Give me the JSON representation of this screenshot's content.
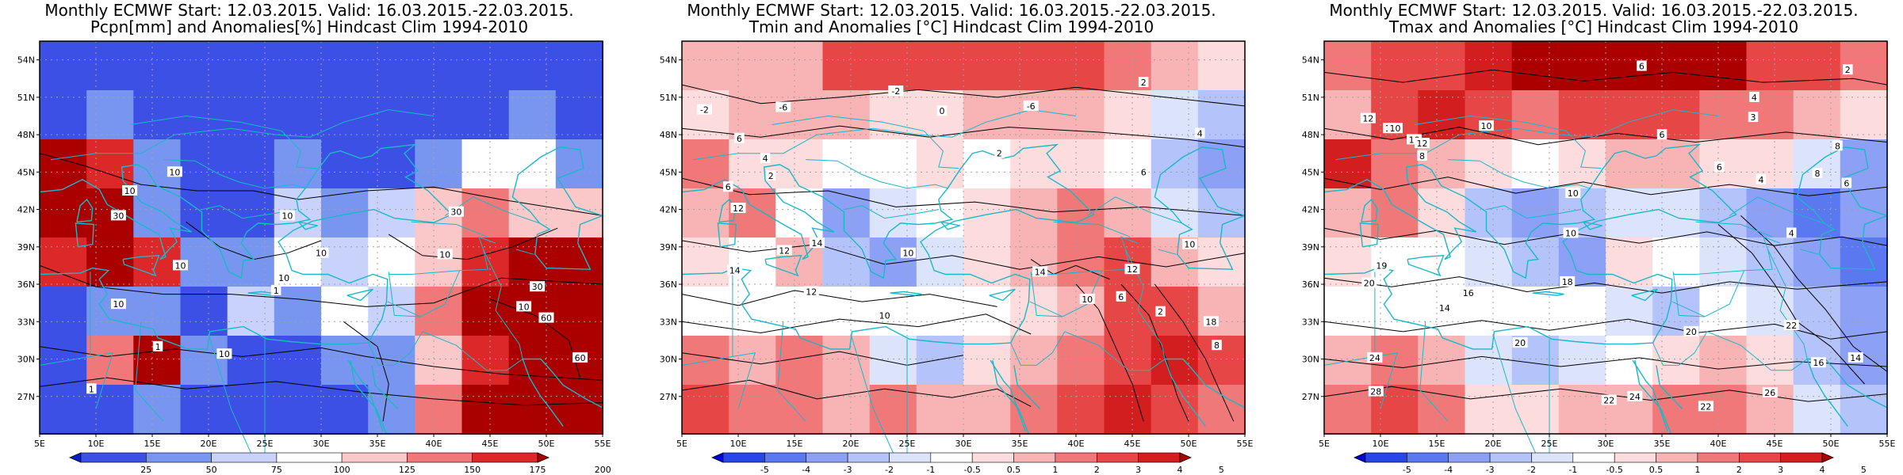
{
  "panels": [
    {
      "title_line1": "Monthly ECMWF Start: 12.03.2015. Valid: 16.03.2015.-22.03.2015.",
      "title_line2": "Pcpn[mm] and Anomalies[%] Hindcast Clim 1994-2010",
      "colorbar_labels": [
        "25",
        "50",
        "75",
        "100",
        "125",
        "150",
        "175",
        "200"
      ],
      "colorbar_colors": [
        "#0a1ec8",
        "#3c50e6",
        "#7896f0",
        "#c8d2fa",
        "#ffffff",
        "#fac8c8",
        "#f07878",
        "#dc2828",
        "#aa0000"
      ],
      "contour_labels": [
        "10",
        "10",
        "30",
        "10",
        "10",
        "10",
        "10",
        "10",
        "30",
        "10",
        "30",
        "60",
        "10",
        "60",
        "1",
        "10",
        "1",
        "1"
      ],
      "field": [
        [
          "#3c50e6",
          "#3c50e6",
          "#3c50e6",
          "#3c50e6",
          "#3c50e6",
          "#3c50e6",
          "#3c50e6",
          "#3c50e6",
          "#3c50e6",
          "#3c50e6",
          "#3c50e6",
          "#3c50e6"
        ],
        [
          "#3c50e6",
          "#7896f0",
          "#3c50e6",
          "#3c50e6",
          "#3c50e6",
          "#3c50e6",
          "#3c50e6",
          "#3c50e6",
          "#3c50e6",
          "#3c50e6",
          "#7896f0",
          "#3c50e6"
        ],
        [
          "#aa0000",
          "#dc2828",
          "#7896f0",
          "#3c50e6",
          "#3c50e6",
          "#7896f0",
          "#3c50e6",
          "#3c50e6",
          "#7896f0",
          "#ffffff",
          "#ffffff",
          "#7896f0"
        ],
        [
          "#aa0000",
          "#aa0000",
          "#7896f0",
          "#3c50e6",
          "#3c50e6",
          "#c8d2fa",
          "#7896f0",
          "#c8d2fa",
          "#fac8c8",
          "#f07878",
          "#fac8c8",
          "#fac8c8"
        ],
        [
          "#dc2828",
          "#aa0000",
          "#dc2828",
          "#7896f0",
          "#7896f0",
          "#ffffff",
          "#c8d2fa",
          "#ffffff",
          "#fac8c8",
          "#dc2828",
          "#aa0000",
          "#aa0000"
        ],
        [
          "#3c50e6",
          "#7896f0",
          "#7896f0",
          "#3c50e6",
          "#c8d2fa",
          "#7896f0",
          "#ffffff",
          "#c8d2fa",
          "#f07878",
          "#aa0000",
          "#aa0000",
          "#aa0000"
        ],
        [
          "#3c50e6",
          "#f07878",
          "#aa0000",
          "#7896f0",
          "#3c50e6",
          "#3c50e6",
          "#7896f0",
          "#7896f0",
          "#fac8c8",
          "#dc2828",
          "#aa0000",
          "#aa0000"
        ],
        [
          "#3c50e6",
          "#3c50e6",
          "#7896f0",
          "#3c50e6",
          "#3c50e6",
          "#3c50e6",
          "#3c50e6",
          "#7896f0",
          "#f07878",
          "#aa0000",
          "#aa0000",
          "#aa0000"
        ]
      ]
    },
    {
      "title_line1": "Monthly ECMWF Start: 12.03.2015. Valid: 16.03.2015.-22.03.2015.",
      "title_line2": "Tmin and Anomalies [°C] Hindcast Clim 1994-2010",
      "colorbar_labels": [
        "-5",
        "-4",
        "-3",
        "-2",
        "-1",
        "-0.5",
        "0.5",
        "1",
        "2",
        "3",
        "4",
        "5"
      ],
      "colorbar_colors": [
        "#0000dc",
        "#2846e6",
        "#5a78f0",
        "#8ca0f5",
        "#b4c3fa",
        "#dce4fc",
        "#ffffff",
        "#fcdcdc",
        "#f8b4b4",
        "#f07878",
        "#e64646",
        "#d21e1e",
        "#aa0000"
      ],
      "contour_labels": [
        "-2",
        "-6",
        "-2",
        "-6",
        "2",
        "4",
        "6",
        "4",
        "2",
        "6",
        "0",
        "2",
        "6",
        "12",
        "14",
        "12",
        "10",
        "14",
        "12",
        "10",
        "14",
        "18",
        "6",
        "2",
        "8",
        "10",
        "12",
        "10"
      ],
      "field": [
        [
          "#f8b4b4",
          "#f8b4b4",
          "#f8b4b4",
          "#e64646",
          "#e64646",
          "#e64646",
          "#e64646",
          "#e64646",
          "#e64646",
          "#f07878",
          "#f8b4b4",
          "#fcdcdc"
        ],
        [
          "#fcdcdc",
          "#f8b4b4",
          "#f8b4b4",
          "#f8b4b4",
          "#fcdcdc",
          "#fcdcdc",
          "#f8b4b4",
          "#f8b4b4",
          "#f8b4b4",
          "#fcdcdc",
          "#dce4fc",
          "#b4c3fa"
        ],
        [
          "#f07878",
          "#fcdcdc",
          "#fcdcdc",
          "#ffffff",
          "#ffffff",
          "#fcdcdc",
          "#ffffff",
          "#fcdcdc",
          "#fcdcdc",
          "#ffffff",
          "#b4c3fa",
          "#8ca0f5"
        ],
        [
          "#f8b4b4",
          "#f07878",
          "#ffffff",
          "#8ca0f5",
          "#dce4fc",
          "#ffffff",
          "#fcdcdc",
          "#f8b4b4",
          "#f07878",
          "#f8b4b4",
          "#dce4fc",
          "#b4c3fa"
        ],
        [
          "#fcdcdc",
          "#ffffff",
          "#f8b4b4",
          "#b4c3fa",
          "#8ca0f5",
          "#dce4fc",
          "#fcdcdc",
          "#f8b4b4",
          "#f07878",
          "#e64646",
          "#f8b4b4",
          "#fcdcdc"
        ],
        [
          "#ffffff",
          "#ffffff",
          "#ffffff",
          "#ffffff",
          "#ffffff",
          "#ffffff",
          "#ffffff",
          "#fcdcdc",
          "#f8b4b4",
          "#e64646",
          "#e64646",
          "#f8b4b4"
        ],
        [
          "#f07878",
          "#f8b4b4",
          "#f07878",
          "#f8b4b4",
          "#dce4fc",
          "#b4c3fa",
          "#fcdcdc",
          "#f8b4b4",
          "#f07878",
          "#e64646",
          "#d21e1e",
          "#e64646"
        ],
        [
          "#e64646",
          "#f07878",
          "#f07878",
          "#f8b4b4",
          "#f07878",
          "#f8b4b4",
          "#f8b4b4",
          "#f07878",
          "#e64646",
          "#d21e1e",
          "#e64646",
          "#f07878"
        ]
      ]
    },
    {
      "title_line1": "Monthly ECMWF Start: 12.03.2015. Valid: 16.03.2015.-22.03.2015.",
      "title_line2": "Tmax and Anomalies [°C] Hindcast Clim 1994-2010",
      "colorbar_labels": [
        "-5",
        "-4",
        "-3",
        "-2",
        "-1",
        "-0.5",
        "0.5",
        "1",
        "2",
        "3",
        "4",
        "5"
      ],
      "colorbar_colors": [
        "#0000dc",
        "#2846e6",
        "#5a78f0",
        "#8ca0f5",
        "#b4c3fa",
        "#dce4fc",
        "#ffffff",
        "#fcdcdc",
        "#f8b4b4",
        "#f07878",
        "#e64646",
        "#d21e1e",
        "#aa0000"
      ],
      "contour_labels": [
        "6",
        "2",
        "12",
        "10",
        "10",
        "8",
        "6",
        "3",
        "4",
        "12",
        "10",
        "12",
        "8",
        "4",
        "6",
        "10",
        "8",
        "6",
        "4",
        "10",
        "19",
        "20",
        "16",
        "14",
        "20",
        "22",
        "20",
        "24",
        "28",
        "24",
        "22",
        "26",
        "22",
        "16",
        "14",
        "18"
      ],
      "field": [
        [
          "#f07878",
          "#e64646",
          "#e64646",
          "#d21e1e",
          "#aa0000",
          "#aa0000",
          "#aa0000",
          "#aa0000",
          "#aa0000",
          "#e64646",
          "#e64646",
          "#f07878"
        ],
        [
          "#f8b4b4",
          "#e64646",
          "#d21e1e",
          "#e64646",
          "#f07878",
          "#e64646",
          "#e64646",
          "#e64646",
          "#f07878",
          "#f07878",
          "#f8b4b4",
          "#fcdcdc"
        ],
        [
          "#d21e1e",
          "#f07878",
          "#f8b4b4",
          "#fcdcdc",
          "#ffffff",
          "#fcdcdc",
          "#f8b4b4",
          "#f8b4b4",
          "#fcdcdc",
          "#fcdcdc",
          "#dce4fc",
          "#8ca0f5"
        ],
        [
          "#f8b4b4",
          "#f07878",
          "#fcdcdc",
          "#b4c3fa",
          "#8ca0f5",
          "#b4c3fa",
          "#dce4fc",
          "#dce4fc",
          "#b4c3fa",
          "#8ca0f5",
          "#5a78f0",
          "#8ca0f5"
        ],
        [
          "#fcdcdc",
          "#ffffff",
          "#ffffff",
          "#dce4fc",
          "#b4c3fa",
          "#8ca0f5",
          "#fcdcdc",
          "#ffffff",
          "#dce4fc",
          "#b4c3fa",
          "#8ca0f5",
          "#5a78f0"
        ],
        [
          "#ffffff",
          "#ffffff",
          "#ffffff",
          "#ffffff",
          "#ffffff",
          "#ffffff",
          "#dce4fc",
          "#b4c3fa",
          "#ffffff",
          "#dce4fc",
          "#b4c3fa",
          "#8ca0f5"
        ],
        [
          "#f8b4b4",
          "#f07878",
          "#f8b4b4",
          "#dce4fc",
          "#b4c3fa",
          "#dce4fc",
          "#ffffff",
          "#fcdcdc",
          "#f8b4b4",
          "#fcdcdc",
          "#b4c3fa",
          "#8ca0f5"
        ],
        [
          "#f07878",
          "#e64646",
          "#f07878",
          "#fcdcdc",
          "#fcdcdc",
          "#f8b4b4",
          "#f8b4b4",
          "#f07878",
          "#f07878",
          "#f8b4b4",
          "#dce4fc",
          "#b4c3fa"
        ]
      ]
    }
  ],
  "lat_labels": [
    "54N",
    "51N",
    "48N",
    "45N",
    "42N",
    "39N",
    "36N",
    "33N",
    "30N",
    "27N"
  ],
  "lon_labels": [
    "5E",
    "10E",
    "15E",
    "20E",
    "25E",
    "30E",
    "35E",
    "40E",
    "45E",
    "50E",
    "55E"
  ],
  "colors": {
    "coastline": "#1ab8c8",
    "contour": "#000000",
    "grid": "#a0a0a0"
  }
}
